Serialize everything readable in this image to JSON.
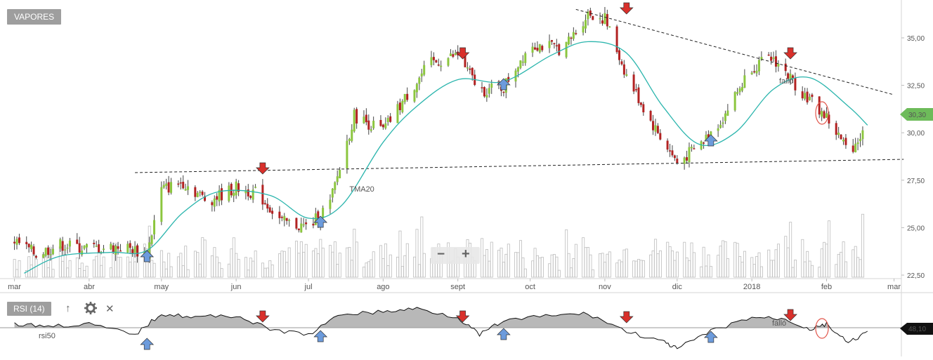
{
  "chart_data": [
    {
      "type": "candlestick",
      "title": "VAPORES",
      "y_ticks": [
        "35,00",
        "32,50",
        "30,00",
        "27,50",
        "25,00",
        "22,50"
      ],
      "ylim": [
        22.5,
        36.7
      ],
      "x_months": [
        "mar",
        "abr",
        "may",
        "jun",
        "jul",
        "ago",
        "sept",
        "oct",
        "nov",
        "dic",
        "2018",
        "feb",
        "mar"
      ],
      "last_price": "30,30",
      "series": [
        {
          "name": "TMA20",
          "style": "line",
          "color": "#2bb5ad"
        }
      ],
      "close_path": [
        [
          "2017-03-01",
          24.3
        ],
        [
          "2017-03-10",
          23.6
        ],
        [
          "2017-03-20",
          24.1
        ],
        [
          "2017-04-01",
          23.9
        ],
        [
          "2017-04-15",
          24.0
        ],
        [
          "2017-04-25",
          23.6
        ],
        [
          "2017-05-01",
          27.0
        ],
        [
          "2017-05-10",
          27.4
        ],
        [
          "2017-05-20",
          26.4
        ],
        [
          "2017-06-01",
          27.1
        ],
        [
          "2017-06-10",
          26.8
        ],
        [
          "2017-06-20",
          25.3
        ],
        [
          "2017-07-01",
          25.0
        ],
        [
          "2017-07-10",
          26.3
        ],
        [
          "2017-07-20",
          30.9
        ],
        [
          "2017-08-01",
          30.1
        ],
        [
          "2017-08-10",
          31.8
        ],
        [
          "2017-08-20",
          33.6
        ],
        [
          "2017-09-01",
          34.1
        ],
        [
          "2017-09-10",
          32.2
        ],
        [
          "2017-09-20",
          32.4
        ],
        [
          "2017-10-01",
          34.7
        ],
        [
          "2017-10-15",
          34.4
        ],
        [
          "2017-10-25",
          36.3
        ],
        [
          "2017-11-01",
          36.0
        ],
        [
          "2017-11-10",
          33.0
        ],
        [
          "2017-11-20",
          30.6
        ],
        [
          "2017-12-01",
          28.4
        ],
        [
          "2017-12-10",
          29.3
        ],
        [
          "2017-12-20",
          30.8
        ],
        [
          "2018-01-01",
          33.5
        ],
        [
          "2018-01-10",
          33.9
        ],
        [
          "2018-01-20",
          32.4
        ],
        [
          "2018-02-01",
          30.8
        ],
        [
          "2018-02-10",
          29.0
        ],
        [
          "2018-02-18",
          30.3
        ]
      ],
      "tma20": [
        [
          "2017-03-05",
          22.6
        ],
        [
          "2017-03-20",
          23.5
        ],
        [
          "2017-04-10",
          23.7
        ],
        [
          "2017-04-25",
          23.8
        ],
        [
          "2017-05-10",
          25.8
        ],
        [
          "2017-05-25",
          26.9
        ],
        [
          "2017-06-15",
          26.7
        ],
        [
          "2017-07-01",
          25.5
        ],
        [
          "2017-07-15",
          26.2
        ],
        [
          "2017-08-01",
          29.5
        ],
        [
          "2017-08-15",
          31.4
        ],
        [
          "2017-09-01",
          32.8
        ],
        [
          "2017-09-20",
          32.7
        ],
        [
          "2017-10-10",
          34.1
        ],
        [
          "2017-10-25",
          34.8
        ],
        [
          "2017-11-10",
          34.2
        ],
        [
          "2017-11-25",
          31.4
        ],
        [
          "2017-12-10",
          29.4
        ],
        [
          "2017-12-25",
          30.0
        ],
        [
          "2018-01-10",
          32.3
        ],
        [
          "2018-01-25",
          32.9
        ],
        [
          "2018-02-10",
          31.4
        ],
        [
          "2018-02-18",
          30.4
        ]
      ],
      "volume_profile": [
        0.2,
        0.35,
        0.3,
        0.5,
        0.4,
        0.55,
        0.3,
        0.6,
        0.45,
        0.4
      ],
      "annotations": [
        "TMA20",
        "falló"
      ],
      "signals": {
        "sell": [
          "2017-06-12",
          "2017-09-03",
          "2017-11-10",
          "2018-01-17"
        ],
        "buy": [
          "2017-04-25",
          "2017-07-06",
          "2017-09-20",
          "2017-12-15"
        ]
      },
      "trendlines": {
        "resistance": [
          [
            "2017-10-20",
            36.5
          ],
          [
            "2018-03-01",
            32.0
          ]
        ],
        "support": [
          [
            "2017-04-20",
            27.9
          ],
          [
            "2018-03-05",
            28.6
          ]
        ]
      }
    },
    {
      "type": "area",
      "title": "RSI (14)",
      "series_label": "rsi50",
      "last_value": "48,10",
      "annotations": [
        "falló"
      ],
      "values": [
        [
          "2017-03-01",
          52
        ],
        [
          "2017-03-15",
          51
        ],
        [
          "2017-04-01",
          52
        ],
        [
          "2017-04-20",
          46
        ],
        [
          "2017-05-01",
          58
        ],
        [
          "2017-05-15",
          56
        ],
        [
          "2017-06-01",
          57
        ],
        [
          "2017-06-15",
          49
        ],
        [
          "2017-07-01",
          46
        ],
        [
          "2017-07-15",
          58
        ],
        [
          "2017-08-01",
          59
        ],
        [
          "2017-08-15",
          61
        ],
        [
          "2017-09-01",
          56
        ],
        [
          "2017-09-10",
          46
        ],
        [
          "2017-09-20",
          54
        ],
        [
          "2017-10-10",
          57
        ],
        [
          "2017-10-25",
          58
        ],
        [
          "2017-11-10",
          48
        ],
        [
          "2017-11-25",
          42
        ],
        [
          "2017-12-01",
          38
        ],
        [
          "2017-12-15",
          48
        ],
        [
          "2018-01-01",
          56
        ],
        [
          "2018-01-15",
          55
        ],
        [
          "2018-01-25",
          49
        ],
        [
          "2018-02-01",
          52
        ],
        [
          "2018-02-10",
          41
        ],
        [
          "2018-02-18",
          48
        ]
      ]
    }
  ],
  "ui": {
    "main_label": "VAPORES",
    "rsi_label": "RSI (14)",
    "rsi50_label": "rsi50",
    "tma_label": "TMA20",
    "fallo_label": "falló",
    "last_price_badge": "30,30",
    "rsi_value_badge": "48,10",
    "zoom_minus": "−",
    "zoom_plus": "+",
    "up_arrow_icon": "↑",
    "close_icon": "✕",
    "colors": {
      "up_candle": "#8cc63f",
      "down_candle": "#b22222",
      "tma_line": "#2bb5ad",
      "sell_arrow": "#d9302b",
      "buy_arrow": "#6c9bdc",
      "badge_green": "#6dbb5a",
      "fallo": "#e2574c",
      "rsi_fill": "#b8b8b8"
    }
  }
}
